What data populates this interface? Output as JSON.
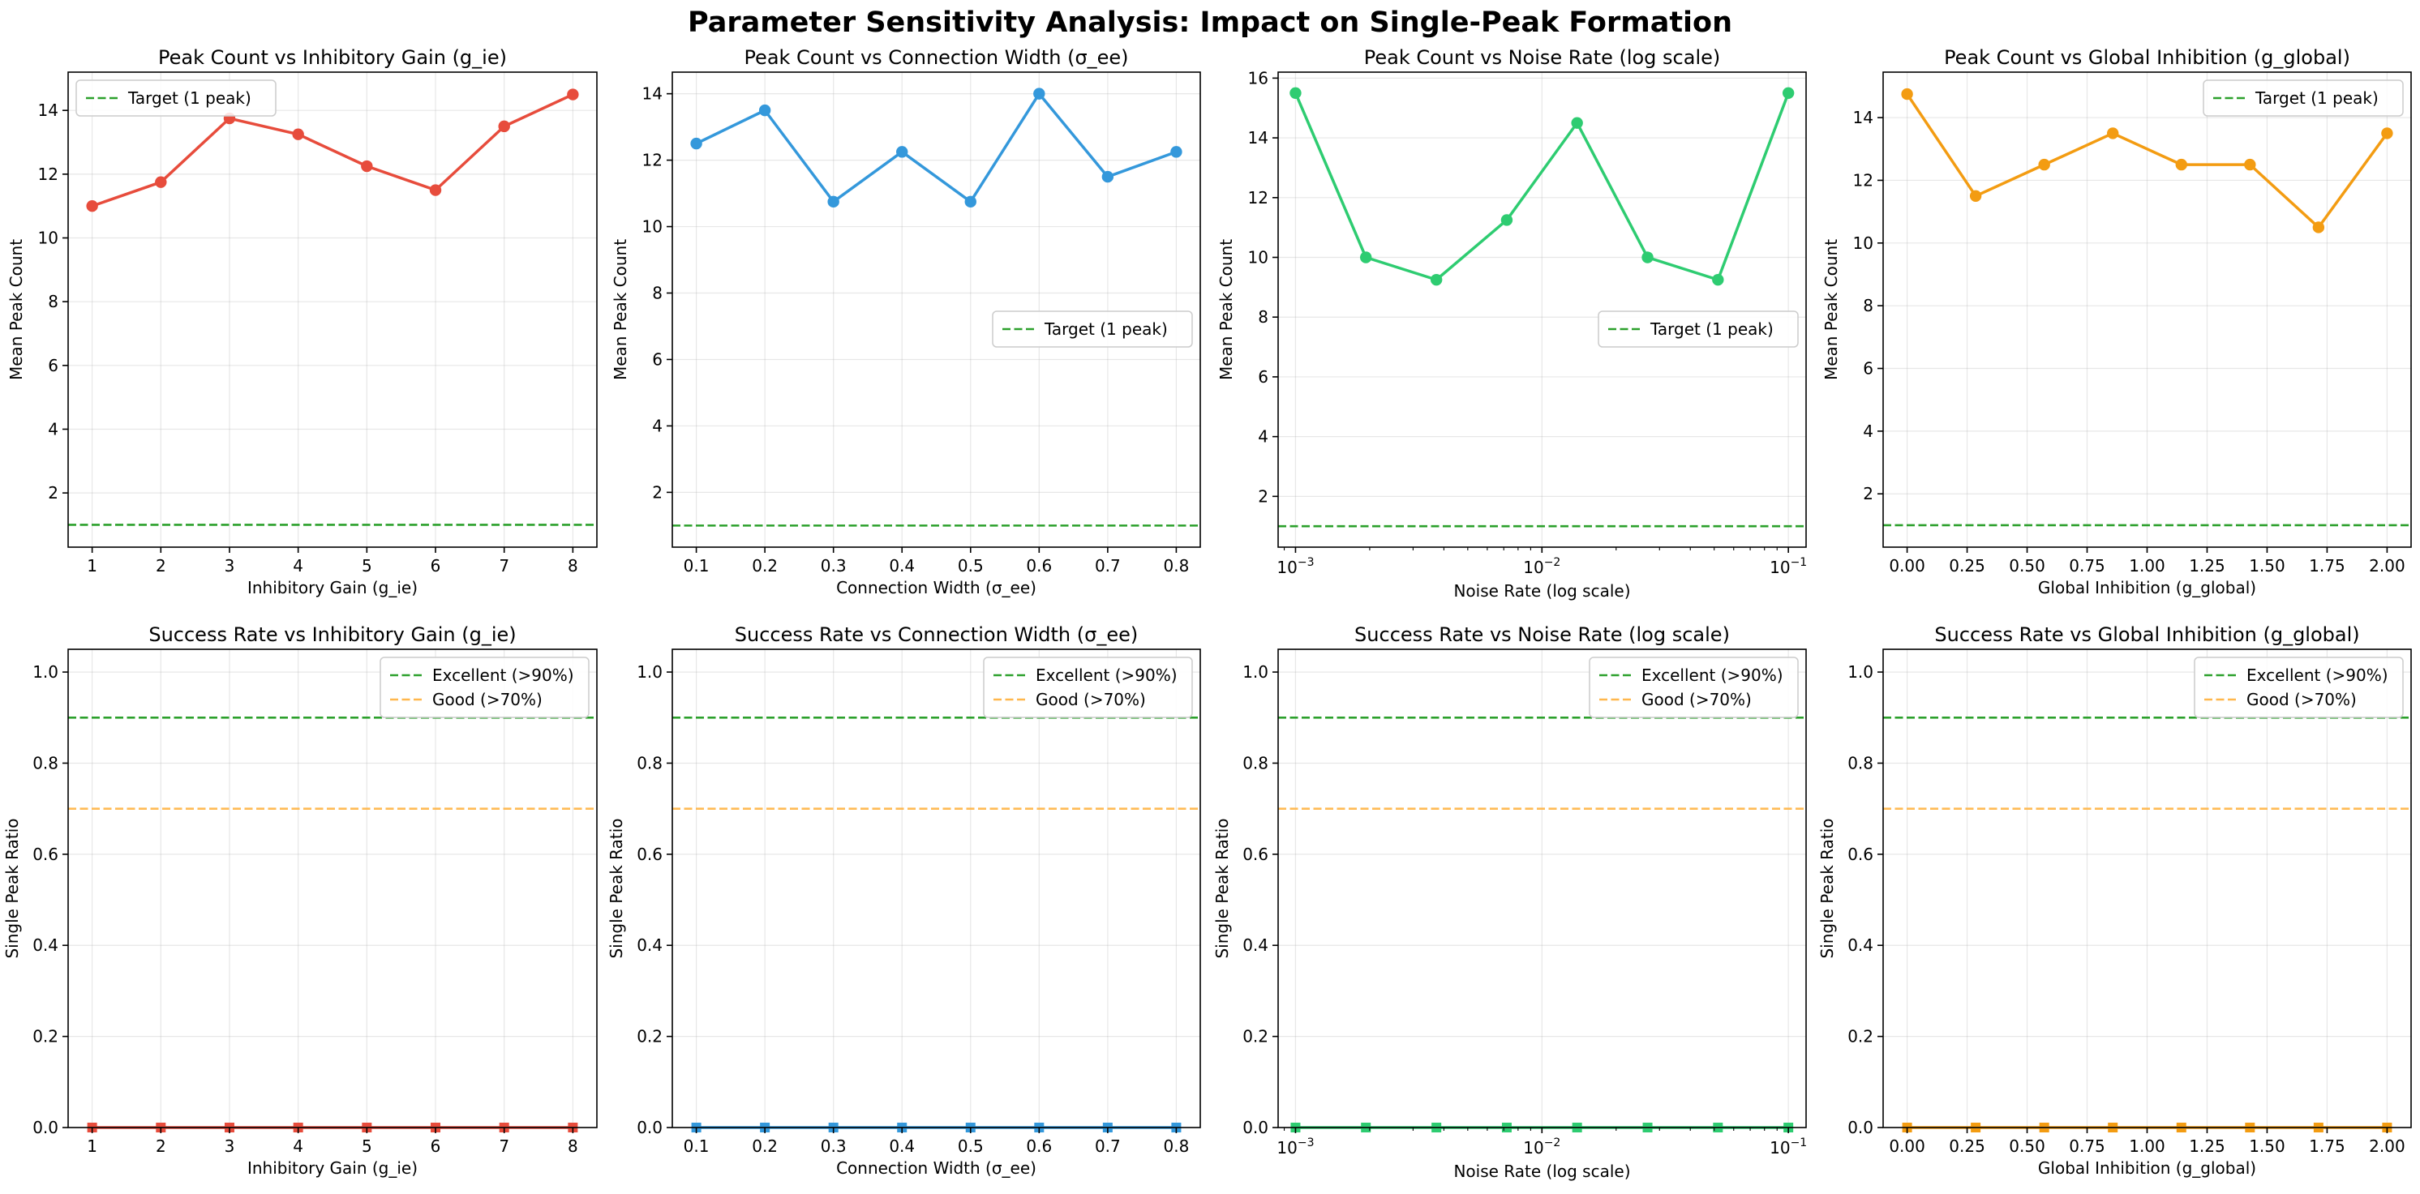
{
  "figure": {
    "suptitle": "Parameter Sensitivity Analysis: Impact on Single-Peak Formation"
  },
  "colors": {
    "red": "#e74c3c",
    "blue": "#3498db",
    "green": "#2ecc71",
    "orange": "#f39c12",
    "target": "#2ca02c",
    "good": "#ffb74d"
  },
  "chart_data": [
    {
      "type": "line",
      "title": "Peak Count vs Inhibitory Gain (g_ie)",
      "xlabel": "Inhibitory Gain (g_ie)",
      "ylabel": "Mean Peak Count",
      "x": [
        1,
        2,
        3,
        4,
        5,
        6,
        7,
        8
      ],
      "xticks": [
        "1",
        "2",
        "3",
        "4",
        "5",
        "6",
        "7",
        "8"
      ],
      "xscale": "linear",
      "xlim": [
        0.65,
        8.35
      ],
      "ylim": [
        0.3,
        15.2
      ],
      "yticks": [
        2,
        4,
        6,
        8,
        10,
        12,
        14
      ],
      "series": [
        {
          "values": [
            11.0,
            11.75,
            13.75,
            13.25,
            12.25,
            11.5,
            13.5,
            14.5
          ],
          "color": "#e74c3c",
          "marker": "circle"
        }
      ],
      "reference_lines": [
        {
          "y": 1,
          "label": "Target (1 peak)",
          "color": "#2ca02c"
        }
      ],
      "legend": "upper-left",
      "grid": true
    },
    {
      "type": "line",
      "title": "Peak Count vs Connection Width (σ_ee)",
      "xlabel": "Connection Width (σ_ee)",
      "ylabel": "Mean Peak Count",
      "x": [
        0.1,
        0.2,
        0.3,
        0.4,
        0.5,
        0.6,
        0.7,
        0.8
      ],
      "xticks": [
        "0.1",
        "0.2",
        "0.3",
        "0.4",
        "0.5",
        "0.6",
        "0.7",
        "0.8"
      ],
      "xscale": "linear",
      "xlim": [
        0.065,
        0.835
      ],
      "ylim": [
        0.35,
        14.65
      ],
      "yticks": [
        2,
        4,
        6,
        8,
        10,
        12,
        14
      ],
      "series": [
        {
          "values": [
            12.5,
            13.5,
            10.75,
            12.25,
            10.75,
            14.0,
            11.5,
            12.25
          ],
          "color": "#3498db",
          "marker": "circle"
        }
      ],
      "reference_lines": [
        {
          "y": 1,
          "label": "Target (1 peak)",
          "color": "#2ca02c"
        }
      ],
      "legend": "center-right",
      "grid": true
    },
    {
      "type": "line",
      "title": "Peak Count vs Noise Rate (log scale)",
      "xlabel": "Noise Rate (log scale)",
      "ylabel": "Mean Peak Count",
      "x": [
        0.001,
        0.00193,
        0.00373,
        0.0072,
        0.01389,
        0.02683,
        0.05179,
        0.1
      ],
      "xticks": [
        "10^-3",
        "10^-2",
        "10^-1"
      ],
      "xscale": "log",
      "xlim": [
        0.00085,
        0.118
      ],
      "ylim": [
        0.3,
        16.2
      ],
      "yticks": [
        2,
        4,
        6,
        8,
        10,
        12,
        14,
        16
      ],
      "series": [
        {
          "values": [
            15.5,
            10.0,
            9.25,
            11.25,
            14.5,
            10.0,
            9.25,
            15.5
          ],
          "color": "#2ecc71",
          "marker": "circle"
        }
      ],
      "reference_lines": [
        {
          "y": 1,
          "label": "Target (1 peak)",
          "color": "#2ca02c"
        }
      ],
      "legend": "center-right",
      "grid": true
    },
    {
      "type": "line",
      "title": "Peak Count vs Global Inhibition (g_global)",
      "xlabel": "Global Inhibition (g_global)",
      "ylabel": "Mean Peak Count",
      "x": [
        0.0,
        0.2857,
        0.5714,
        0.8571,
        1.1429,
        1.4286,
        1.7143,
        2.0
      ],
      "xticks": [
        "0.00",
        "0.25",
        "0.50",
        "0.75",
        "1.00",
        "1.25",
        "1.50",
        "1.75",
        "2.00"
      ],
      "xscale": "linear",
      "xlim": [
        -0.1,
        2.1
      ],
      "ylim": [
        0.3,
        15.45
      ],
      "yticks": [
        2,
        4,
        6,
        8,
        10,
        12,
        14
      ],
      "series": [
        {
          "values": [
            14.75,
            11.5,
            12.5,
            13.5,
            12.5,
            12.5,
            10.5,
            13.5
          ],
          "color": "#f39c12",
          "marker": "circle"
        }
      ],
      "reference_lines": [
        {
          "y": 1,
          "label": "Target (1 peak)",
          "color": "#2ca02c"
        }
      ],
      "legend": "upper-right",
      "grid": true
    },
    {
      "type": "line",
      "title": "Success Rate vs Inhibitory Gain (g_ie)",
      "xlabel": "Inhibitory Gain (g_ie)",
      "ylabel": "Single Peak Ratio",
      "x": [
        1,
        2,
        3,
        4,
        5,
        6,
        7,
        8
      ],
      "xticks": [
        "1",
        "2",
        "3",
        "4",
        "5",
        "6",
        "7",
        "8"
      ],
      "xscale": "linear",
      "xlim": [
        0.65,
        8.35
      ],
      "ylim": [
        0,
        1.05
      ],
      "yticks": [
        0.0,
        0.2,
        0.4,
        0.6,
        0.8,
        1.0
      ],
      "series": [
        {
          "values": [
            0,
            0,
            0,
            0,
            0,
            0,
            0,
            0
          ],
          "color": "#e74c3c",
          "marker": "square"
        }
      ],
      "reference_lines": [
        {
          "y": 0.9,
          "label": "Excellent (>90%)",
          "color": "#2ca02c"
        },
        {
          "y": 0.7,
          "label": "Good (>70%)",
          "color": "#ffb74d"
        }
      ],
      "legend": "upper-right",
      "grid": true
    },
    {
      "type": "line",
      "title": "Success Rate vs Connection Width (σ_ee)",
      "xlabel": "Connection Width (σ_ee)",
      "ylabel": "Single Peak Ratio",
      "x": [
        0.1,
        0.2,
        0.3,
        0.4,
        0.5,
        0.6,
        0.7,
        0.8
      ],
      "xticks": [
        "0.1",
        "0.2",
        "0.3",
        "0.4",
        "0.5",
        "0.6",
        "0.7",
        "0.8"
      ],
      "xscale": "linear",
      "xlim": [
        0.065,
        0.835
      ],
      "ylim": [
        0,
        1.05
      ],
      "yticks": [
        0.0,
        0.2,
        0.4,
        0.6,
        0.8,
        1.0
      ],
      "series": [
        {
          "values": [
            0,
            0,
            0,
            0,
            0,
            0,
            0,
            0
          ],
          "color": "#3498db",
          "marker": "square"
        }
      ],
      "reference_lines": [
        {
          "y": 0.9,
          "label": "Excellent (>90%)",
          "color": "#2ca02c"
        },
        {
          "y": 0.7,
          "label": "Good (>70%)",
          "color": "#ffb74d"
        }
      ],
      "legend": "upper-right",
      "grid": true
    },
    {
      "type": "line",
      "title": "Success Rate vs Noise Rate (log scale)",
      "xlabel": "Noise Rate (log scale)",
      "ylabel": "Single Peak Ratio",
      "x": [
        0.001,
        0.00193,
        0.00373,
        0.0072,
        0.01389,
        0.02683,
        0.05179,
        0.1
      ],
      "xticks": [
        "10^-3",
        "10^-2",
        "10^-1"
      ],
      "xscale": "log",
      "xlim": [
        0.00085,
        0.118
      ],
      "ylim": [
        0,
        1.05
      ],
      "yticks": [
        0.0,
        0.2,
        0.4,
        0.6,
        0.8,
        1.0
      ],
      "series": [
        {
          "values": [
            0,
            0,
            0,
            0,
            0,
            0,
            0,
            0
          ],
          "color": "#2ecc71",
          "marker": "square"
        }
      ],
      "reference_lines": [
        {
          "y": 0.9,
          "label": "Excellent (>90%)",
          "color": "#2ca02c"
        },
        {
          "y": 0.7,
          "label": "Good (>70%)",
          "color": "#ffb74d"
        }
      ],
      "legend": "upper-right",
      "grid": true
    },
    {
      "type": "line",
      "title": "Success Rate vs Global Inhibition (g_global)",
      "xlabel": "Global Inhibition (g_global)",
      "ylabel": "Single Peak Ratio",
      "x": [
        0.0,
        0.2857,
        0.5714,
        0.8571,
        1.1429,
        1.4286,
        1.7143,
        2.0
      ],
      "xticks": [
        "0.00",
        "0.25",
        "0.50",
        "0.75",
        "1.00",
        "1.25",
        "1.50",
        "1.75",
        "2.00"
      ],
      "xscale": "linear",
      "xlim": [
        -0.1,
        2.1
      ],
      "ylim": [
        0,
        1.05
      ],
      "yticks": [
        0.0,
        0.2,
        0.4,
        0.6,
        0.8,
        1.0
      ],
      "series": [
        {
          "values": [
            0,
            0,
            0,
            0,
            0,
            0,
            0,
            0
          ],
          "color": "#f39c12",
          "marker": "square"
        }
      ],
      "reference_lines": [
        {
          "y": 0.9,
          "label": "Excellent (>90%)",
          "color": "#2ca02c"
        },
        {
          "y": 0.7,
          "label": "Good (>70%)",
          "color": "#ffb74d"
        }
      ],
      "legend": "upper-right",
      "grid": true
    }
  ]
}
